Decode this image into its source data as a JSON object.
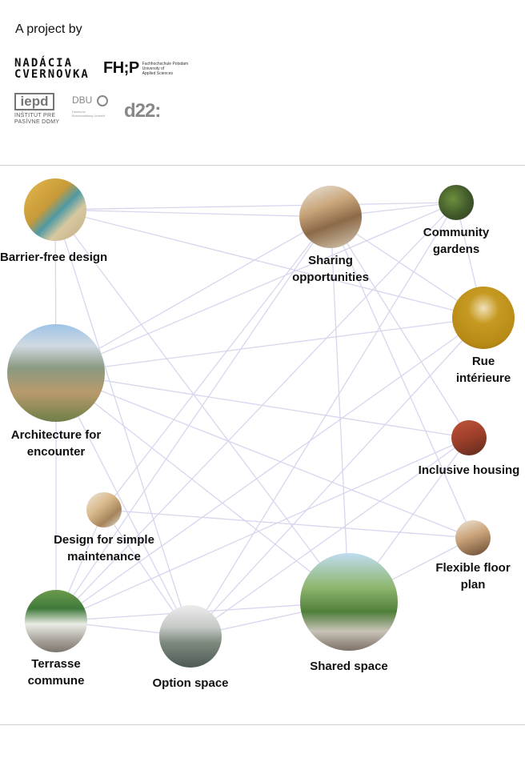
{
  "intro": "A project by",
  "logos": {
    "nadacia": [
      "NADÁCIA",
      "CVERNOVKA"
    ],
    "fhp_mark": "FH;P",
    "fhp_text": [
      "Fachhochschule Potsdam",
      "University of",
      "Applied Sciences"
    ],
    "iepd_mark": "iepd",
    "iepd_text": [
      "INŠTITÚT PRE",
      "PASÍVNE DOMY"
    ],
    "dbu_mark": "DBU",
    "dbu_text": [
      "Deutsche",
      "Bundesstiftung Umwelt"
    ],
    "d22_mark": "d22:"
  },
  "nodes": [
    {
      "id": "barrier",
      "lines": [
        "Barrier-free design"
      ],
      "icon": "corridor-photo"
    },
    {
      "id": "sharing",
      "lines": [
        "Sharing",
        "opportunities"
      ],
      "icon": "library-photo"
    },
    {
      "id": "gardens",
      "lines": [
        "Community",
        "gardens"
      ],
      "icon": "garden-photo"
    },
    {
      "id": "rue",
      "lines": [
        "Rue",
        "intérieure"
      ],
      "icon": "interior-photo"
    },
    {
      "id": "architecture",
      "lines": [
        "Architecture for",
        "encounter"
      ],
      "icon": "courtyard-photo"
    },
    {
      "id": "inclusive",
      "lines": [
        "Inclusive housing"
      ],
      "icon": "facade-photo"
    },
    {
      "id": "maintenance",
      "lines": [
        "Design for simple",
        "maintenance"
      ],
      "icon": "stair-photo"
    },
    {
      "id": "floorplan",
      "lines": [
        "Flexible floor",
        "plan"
      ],
      "icon": "room-photo"
    },
    {
      "id": "terrasse",
      "lines": [
        "Terrasse",
        "commune"
      ],
      "icon": "terrace-photo"
    },
    {
      "id": "option",
      "lines": [
        "Option space"
      ],
      "icon": "option-room-photo"
    },
    {
      "id": "shared",
      "lines": [
        "Shared space"
      ],
      "icon": "shared-yard-photo"
    }
  ],
  "edges": [
    [
      "barrier",
      "sharing"
    ],
    [
      "barrier",
      "gardens"
    ],
    [
      "barrier",
      "rue"
    ],
    [
      "barrier",
      "architecture"
    ],
    [
      "barrier",
      "option"
    ],
    [
      "barrier",
      "shared"
    ],
    [
      "sharing",
      "gardens"
    ],
    [
      "sharing",
      "rue"
    ],
    [
      "sharing",
      "architecture"
    ],
    [
      "sharing",
      "inclusive"
    ],
    [
      "sharing",
      "floorplan"
    ],
    [
      "sharing",
      "shared"
    ],
    [
      "sharing",
      "maintenance"
    ],
    [
      "sharing",
      "terrasse"
    ],
    [
      "gardens",
      "architecture"
    ],
    [
      "gardens",
      "option"
    ],
    [
      "gardens",
      "terrasse"
    ],
    [
      "gardens",
      "rue"
    ],
    [
      "rue",
      "architecture"
    ],
    [
      "rue",
      "terrasse"
    ],
    [
      "rue",
      "option"
    ],
    [
      "architecture",
      "inclusive"
    ],
    [
      "architecture",
      "floorplan"
    ],
    [
      "architecture",
      "option"
    ],
    [
      "architecture",
      "shared"
    ],
    [
      "architecture",
      "terrasse"
    ],
    [
      "inclusive",
      "shared"
    ],
    [
      "inclusive",
      "terrasse"
    ],
    [
      "inclusive",
      "option"
    ],
    [
      "floorplan",
      "shared"
    ],
    [
      "floorplan",
      "maintenance"
    ],
    [
      "terrasse",
      "shared"
    ],
    [
      "terrasse",
      "option"
    ],
    [
      "terrasse",
      "maintenance"
    ],
    [
      "option",
      "shared"
    ],
    [
      "option",
      "maintenance"
    ]
  ],
  "colors": {
    "edge": "#d6d6ee",
    "rule": "#cfcfcf",
    "text": "#111111"
  }
}
